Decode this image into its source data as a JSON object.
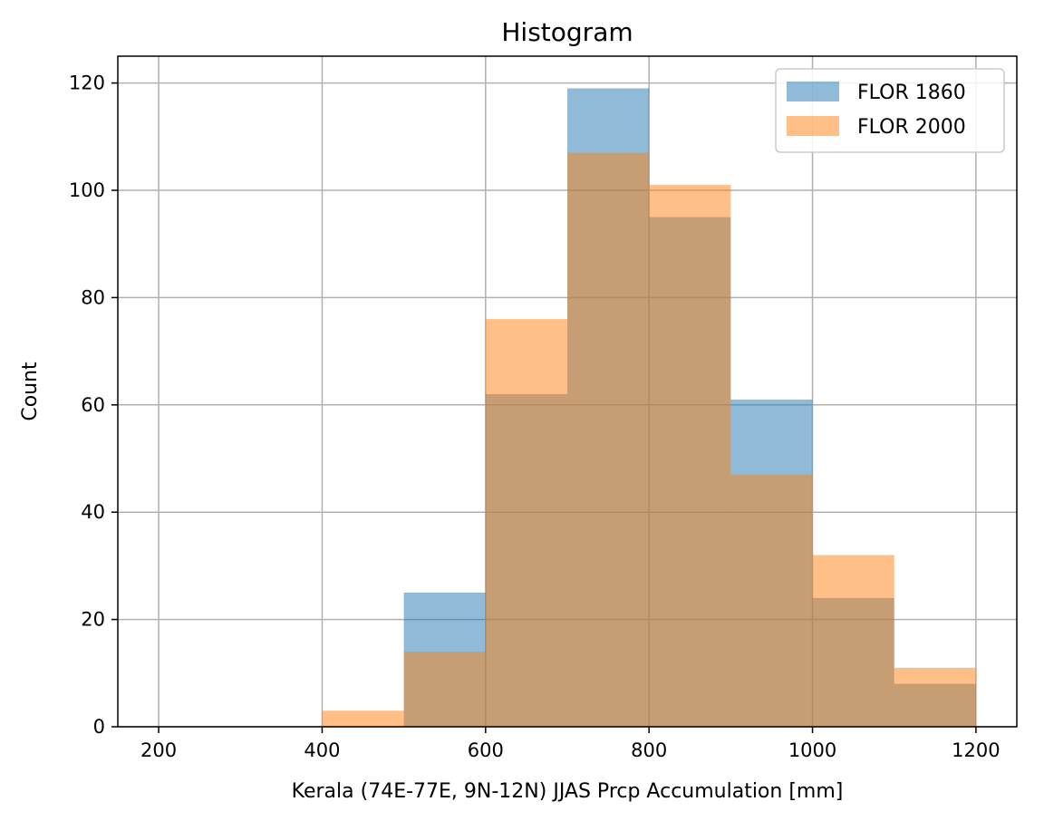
{
  "chart_data": {
    "type": "bar",
    "subtype": "overlaid-histogram",
    "title": "Histogram",
    "xlabel": "Kerala (74E-77E, 9N-12N) JJAS Prcp Accumulation [mm]",
    "ylabel": "Count",
    "xlim": [
      150,
      1250
    ],
    "ylim": [
      0,
      125
    ],
    "xticks": [
      200,
      400,
      600,
      800,
      1000,
      1200
    ],
    "yticks": [
      0,
      20,
      40,
      60,
      80,
      100,
      120
    ],
    "grid": true,
    "legend_position": "top-right",
    "bin_edges": [
      400,
      500,
      600,
      700,
      800,
      900,
      1000,
      1100,
      1200
    ],
    "series": [
      {
        "name": "FLOR 1860",
        "color": "#1f77b4",
        "alpha": 0.5,
        "values": [
          0,
          25,
          62,
          119,
          95,
          61,
          24,
          8
        ]
      },
      {
        "name": "FLOR 2000",
        "color": "#ff7f0e",
        "alpha": 0.5,
        "values": [
          3,
          14,
          76,
          107,
          101,
          47,
          32,
          11
        ]
      }
    ]
  }
}
